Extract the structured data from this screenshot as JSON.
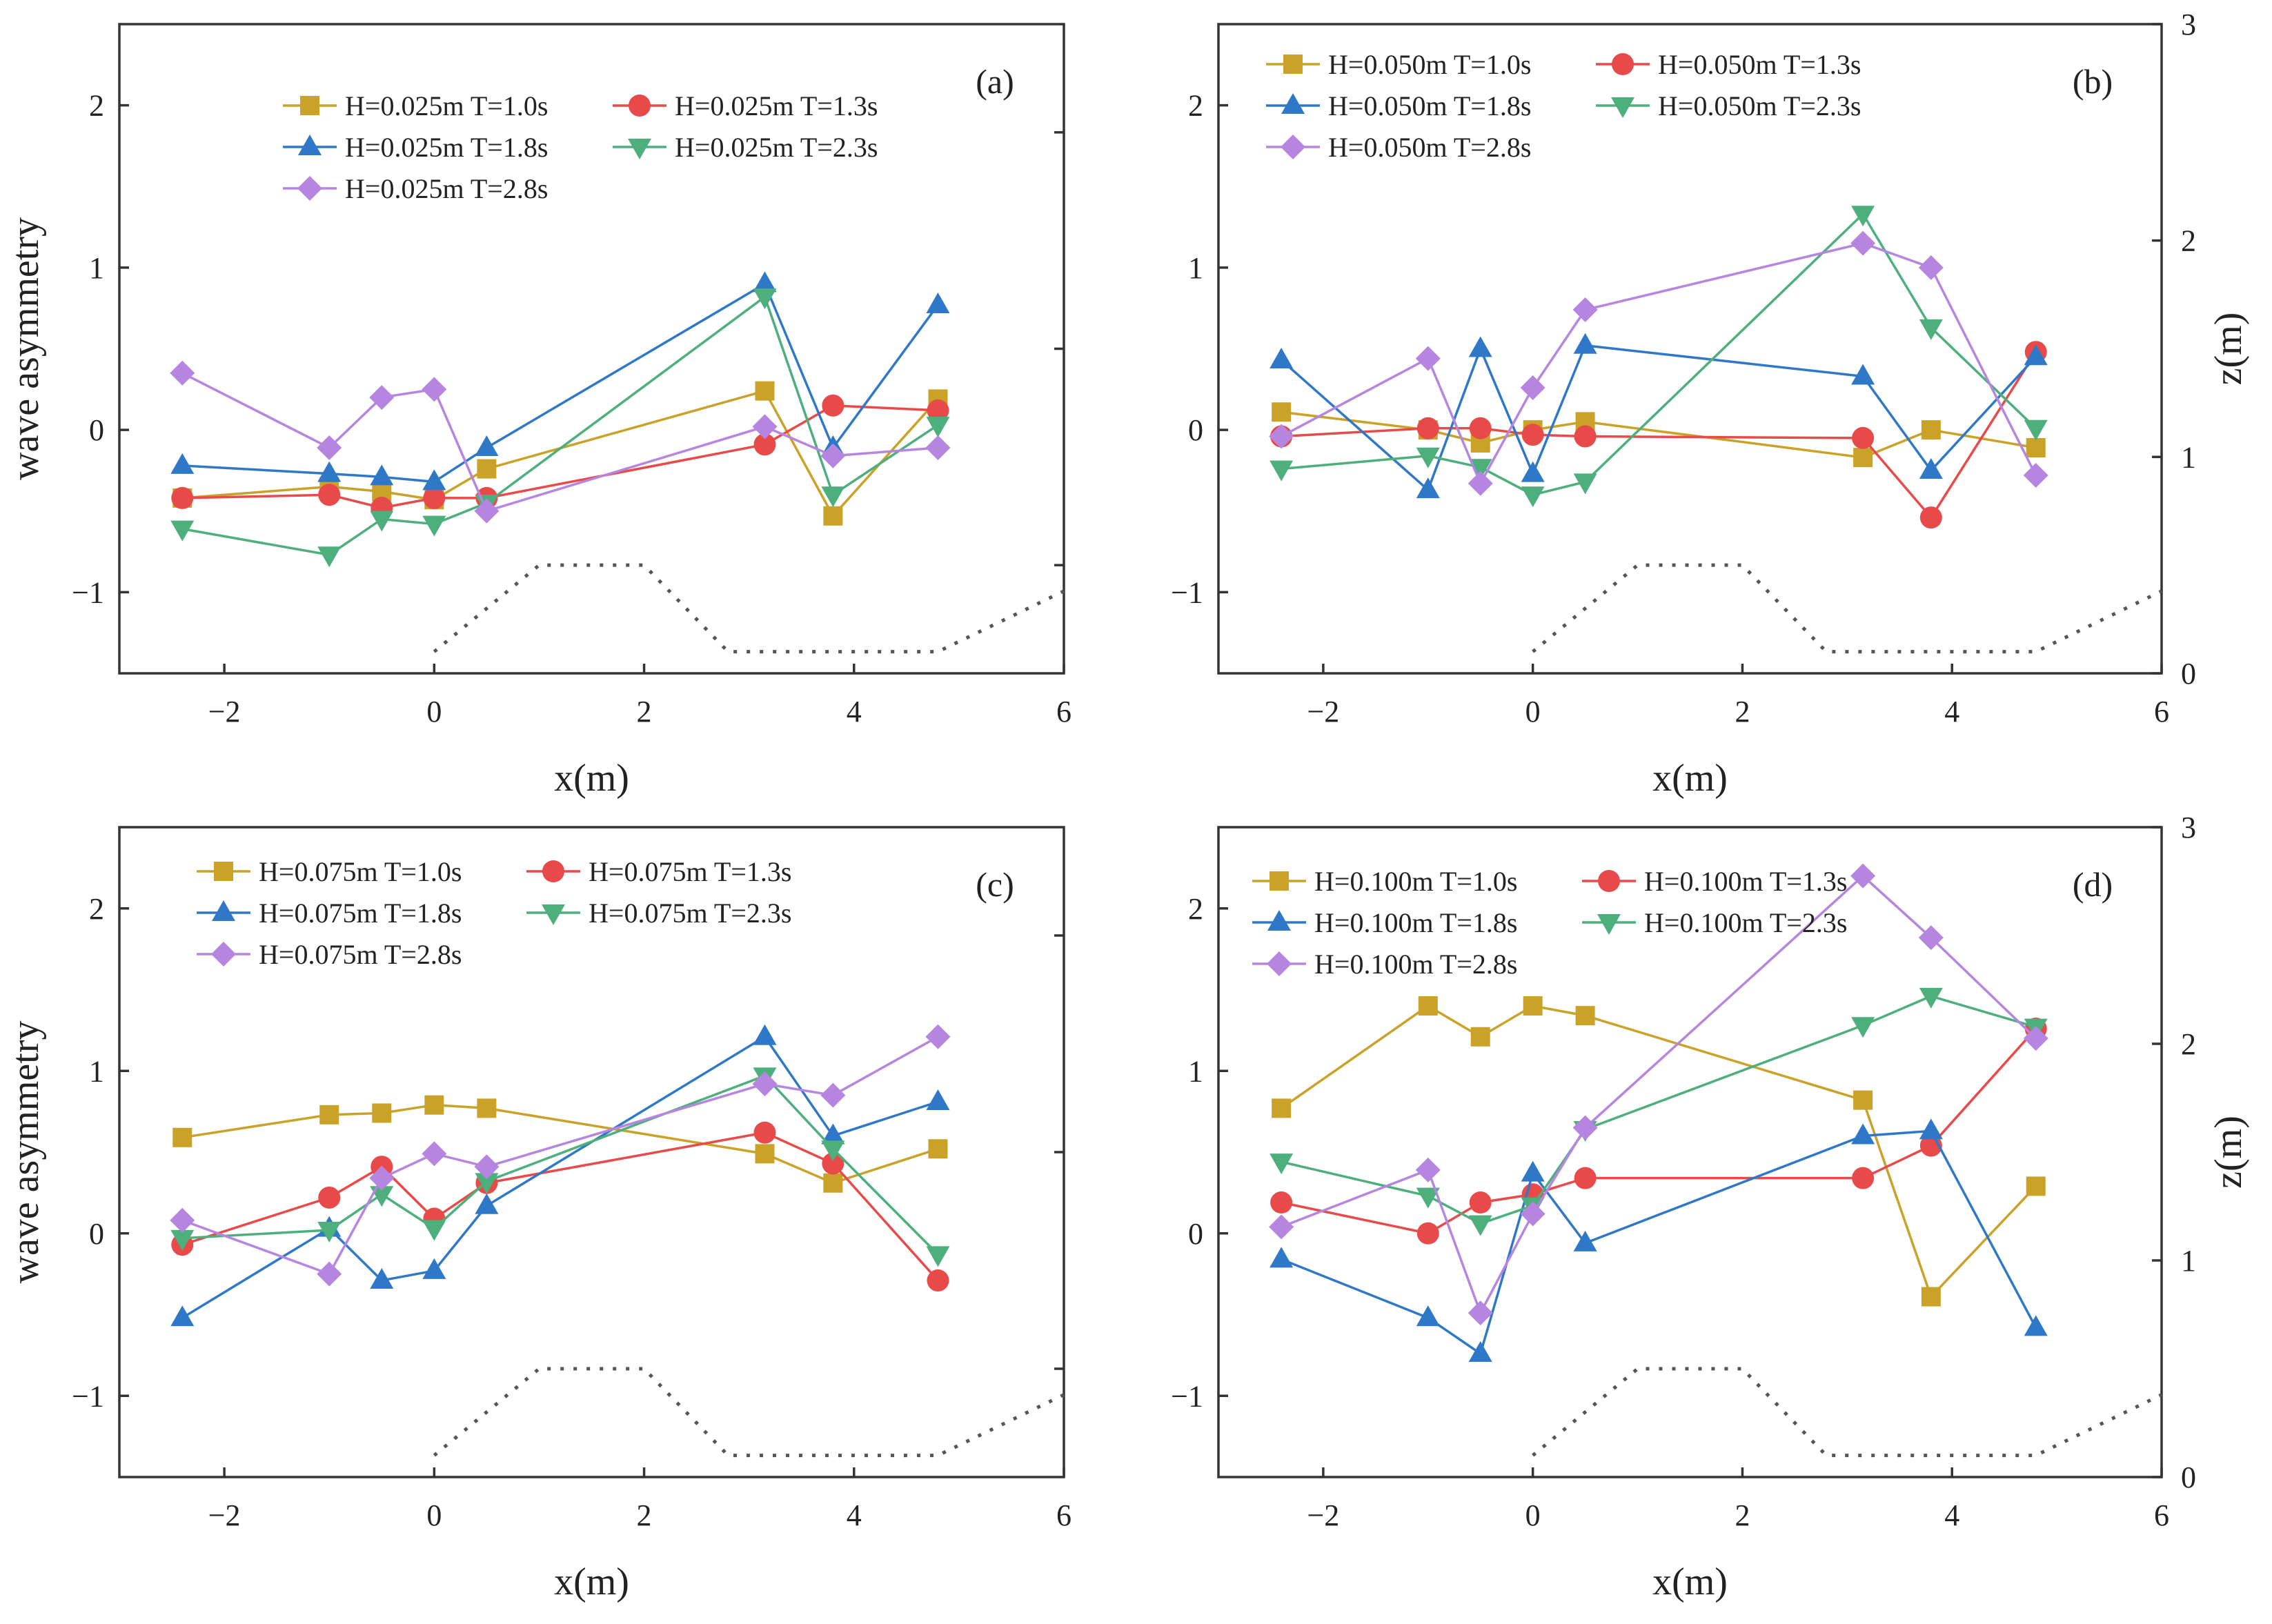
{
  "figure": {
    "colors": {
      "T=1.0s": "#C9A227",
      "T=1.3s": "#E84A4A",
      "T=1.8s": "#2F78C8",
      "T=2.3s": "#4DAF7C",
      "T=2.8s": "#B685E0"
    },
    "markers": {
      "T=1.0s": "square",
      "T=1.3s": "circle",
      "T=1.8s": "triangle-up",
      "T=2.3s": "triangle-down",
      "T=2.8s": "diamond"
    }
  },
  "chart_data": [
    {
      "panel": "a",
      "label": "(a)",
      "type": "line",
      "xlabel": "x(m)",
      "ylabel": "wave asymmetry",
      "ylabel_right": "",
      "xlim": [
        -3,
        6
      ],
      "ylim": [
        -1.5,
        2.5
      ],
      "xticks": [
        -2,
        0,
        2,
        4,
        6
      ],
      "yticks": [
        -1,
        0,
        1,
        2
      ],
      "x": [
        -2.4,
        -1.0,
        -0.5,
        0.0,
        0.5,
        3.15,
        3.8,
        4.8
      ],
      "series": [
        {
          "name": "H=0.025m T=1.0s",
          "key": "T=1.0s",
          "values": [
            -0.42,
            -0.35,
            -0.38,
            -0.43,
            -0.24,
            0.24,
            -0.53,
            0.19
          ]
        },
        {
          "name": "H=0.025m T=1.3s",
          "key": "T=1.3s",
          "values": [
            -0.42,
            -0.4,
            -0.48,
            -0.42,
            -0.42,
            -0.09,
            0.15,
            0.12
          ]
        },
        {
          "name": "H=0.025m T=1.8s",
          "key": "T=1.8s",
          "values": [
            -0.22,
            -0.27,
            -0.29,
            -0.32,
            -0.11,
            0.9,
            -0.11,
            0.77
          ]
        },
        {
          "name": "H=0.025m T=2.3s",
          "key": "T=2.3s",
          "values": [
            -0.61,
            -0.77,
            -0.55,
            -0.58,
            -0.45,
            0.82,
            -0.4,
            0.03
          ]
        },
        {
          "name": "H=0.025m T=2.8s",
          "key": "T=2.8s",
          "values": [
            0.35,
            -0.11,
            0.2,
            0.25,
            -0.5,
            0.02,
            -0.16,
            -0.11
          ]
        }
      ],
      "bed_profile": {
        "x": [
          0.0,
          1.0,
          2.0,
          2.8,
          4.8,
          6.0
        ],
        "z": [
          0.1,
          0.5,
          0.5,
          0.1,
          0.1,
          0.38
        ]
      }
    },
    {
      "panel": "b",
      "label": "(b)",
      "type": "line",
      "xlabel": "x(m)",
      "ylabel": "",
      "ylabel_right": "z(m)",
      "xlim": [
        -3,
        6
      ],
      "ylim": [
        -1.5,
        2.5
      ],
      "xticks": [
        -2,
        0,
        2,
        4,
        6
      ],
      "yticks": [
        -1,
        0,
        1,
        2
      ],
      "zlim": [
        0,
        3
      ],
      "zticks": [
        0,
        1,
        2,
        3
      ],
      "x": [
        -2.4,
        -1.0,
        -0.5,
        0.0,
        0.5,
        3.15,
        3.8,
        4.8
      ],
      "series": [
        {
          "name": "H=0.050m T=1.0s",
          "key": "T=1.0s",
          "values": [
            0.11,
            0.0,
            -0.08,
            0.0,
            0.05,
            -0.17,
            0.0,
            -0.11
          ]
        },
        {
          "name": "H=0.050m T=1.3s",
          "key": "T=1.3s",
          "values": [
            -0.04,
            0.01,
            0.01,
            -0.03,
            -0.04,
            -0.05,
            -0.54,
            0.48
          ]
        },
        {
          "name": "H=0.050m T=1.8s",
          "key": "T=1.8s",
          "values": [
            0.43,
            -0.37,
            0.5,
            -0.27,
            0.52,
            0.33,
            -0.25,
            0.45
          ]
        },
        {
          "name": "H=0.050m T=2.3s",
          "key": "T=2.3s",
          "values": [
            -0.24,
            -0.16,
            -0.23,
            -0.4,
            -0.32,
            1.33,
            0.63,
            0.01
          ]
        },
        {
          "name": "H=0.050m T=2.8s",
          "key": "T=2.8s",
          "values": [
            -0.04,
            0.44,
            -0.33,
            0.26,
            0.74,
            1.15,
            1.0,
            -0.28
          ]
        }
      ],
      "bed_profile": {
        "x": [
          0.0,
          1.0,
          2.0,
          2.8,
          4.8,
          6.0
        ],
        "z": [
          0.1,
          0.5,
          0.5,
          0.1,
          0.1,
          0.38
        ]
      }
    },
    {
      "panel": "c",
      "label": "(c)",
      "type": "line",
      "xlabel": "x(m)",
      "ylabel": "wave asymmetry",
      "ylabel_right": "",
      "xlim": [
        -3,
        6
      ],
      "ylim": [
        -1.5,
        2.5
      ],
      "xticks": [
        -2,
        0,
        2,
        4,
        6
      ],
      "yticks": [
        -1,
        0,
        1,
        2
      ],
      "x": [
        -2.4,
        -1.0,
        -0.5,
        0.0,
        0.5,
        3.15,
        3.8,
        4.8
      ],
      "series": [
        {
          "name": "H=0.075m T=1.0s",
          "key": "T=1.0s",
          "values": [
            0.59,
            0.73,
            0.74,
            0.79,
            0.77,
            0.49,
            0.31,
            0.52
          ]
        },
        {
          "name": "H=0.075m T=1.3s",
          "key": "T=1.3s",
          "values": [
            -0.07,
            0.22,
            0.41,
            0.09,
            0.31,
            0.62,
            0.43,
            -0.29
          ]
        },
        {
          "name": "H=0.075m T=1.8s",
          "key": "T=1.8s",
          "values": [
            -0.52,
            0.03,
            -0.29,
            -0.23,
            0.17,
            1.21,
            0.6,
            0.81
          ]
        },
        {
          "name": "H=0.075m T=2.3s",
          "key": "T=2.3s",
          "values": [
            -0.03,
            0.02,
            0.24,
            0.03,
            0.32,
            0.97,
            0.52,
            -0.13
          ]
        },
        {
          "name": "H=0.075m T=2.8s",
          "key": "T=2.8s",
          "values": [
            0.08,
            -0.25,
            0.34,
            0.49,
            0.41,
            0.92,
            0.85,
            1.21
          ]
        }
      ],
      "bed_profile": {
        "x": [
          0.0,
          1.0,
          2.0,
          2.8,
          4.8,
          6.0
        ],
        "z": [
          0.1,
          0.5,
          0.5,
          0.1,
          0.1,
          0.38
        ]
      }
    },
    {
      "panel": "d",
      "label": "(d)",
      "type": "line",
      "xlabel": "x(m)",
      "ylabel": "",
      "ylabel_right": "z(m)",
      "xlim": [
        -3,
        6
      ],
      "ylim": [
        -1.5,
        2.5
      ],
      "xticks": [
        -2,
        0,
        2,
        4,
        6
      ],
      "yticks": [
        -1,
        0,
        1,
        2
      ],
      "zlim": [
        0,
        3
      ],
      "zticks": [
        0,
        1,
        2,
        3
      ],
      "x": [
        -2.4,
        -1.0,
        -0.5,
        0.0,
        0.5,
        3.15,
        3.8,
        4.8
      ],
      "series": [
        {
          "name": "H=0.100m T=1.0s",
          "key": "T=1.0s",
          "values": [
            0.77,
            1.4,
            1.21,
            1.4,
            1.34,
            0.82,
            -0.39,
            0.29
          ]
        },
        {
          "name": "H=0.100m T=1.3s",
          "key": "T=1.3s",
          "values": [
            0.19,
            0.0,
            0.19,
            0.24,
            0.34,
            0.34,
            0.54,
            1.26
          ]
        },
        {
          "name": "H=0.100m T=1.8s",
          "key": "T=1.8s",
          "values": [
            -0.16,
            -0.52,
            -0.74,
            0.37,
            -0.06,
            0.6,
            0.63,
            -0.58
          ]
        },
        {
          "name": "H=0.100m T=2.3s",
          "key": "T=2.3s",
          "values": [
            0.44,
            0.23,
            0.06,
            0.17,
            0.64,
            1.28,
            1.46,
            1.27
          ]
        },
        {
          "name": "H=0.100m T=2.8s",
          "key": "T=2.8s",
          "values": [
            0.04,
            0.39,
            -0.49,
            0.12,
            0.65,
            2.2,
            1.82,
            1.2
          ]
        }
      ],
      "bed_profile": {
        "x": [
          0.0,
          1.0,
          2.0,
          2.8,
          4.8,
          6.0
        ],
        "z": [
          0.1,
          0.5,
          0.5,
          0.1,
          0.1,
          0.38
        ]
      }
    }
  ]
}
